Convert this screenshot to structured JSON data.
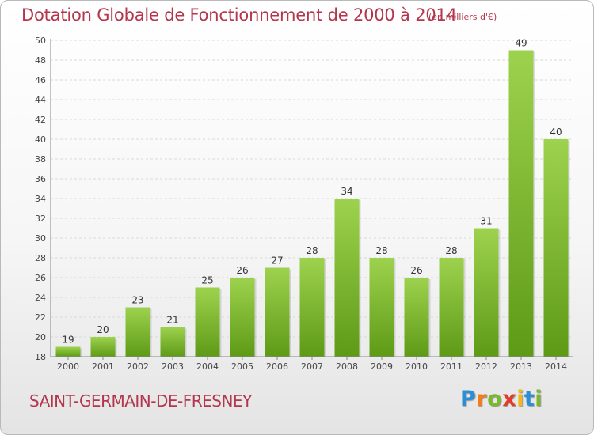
{
  "header": {
    "title": "Dotation Globale de Fonctionnement de 2000 à 2014",
    "unit": "(en milliers d'€)"
  },
  "footer": {
    "commune": "SAINT-GERMAIN-DE-FRESNEY",
    "logo_letters": [
      "P",
      "r",
      "o",
      "x",
      "i",
      "t",
      "i"
    ],
    "logo_colors": [
      "#2a8fd6",
      "#f07f1a",
      "#7ab82e",
      "#e33d2a",
      "#f0b81a",
      "#2a8fd6",
      "#7ab82e"
    ]
  },
  "colors": {
    "bar_top": "#9dd24e",
    "bar_bottom": "#5e9a16",
    "grid": "#d9d9d9",
    "axis": "#888888",
    "text_accent": "#b3364c"
  },
  "chart_data": {
    "type": "bar",
    "title": "Dotation Globale de Fonctionnement de 2000 à 2014",
    "categories": [
      "2000",
      "2001",
      "2002",
      "2003",
      "2004",
      "2005",
      "2006",
      "2007",
      "2008",
      "2009",
      "2010",
      "2011",
      "2012",
      "2013",
      "2014"
    ],
    "values": [
      19,
      20,
      23,
      21,
      25,
      26,
      27,
      28,
      34,
      28,
      26,
      28,
      31,
      49,
      40
    ],
    "ylim": [
      18,
      50
    ],
    "yticks": [
      18,
      20,
      22,
      24,
      26,
      28,
      30,
      32,
      34,
      36,
      38,
      40,
      42,
      44,
      46,
      48,
      50
    ],
    "xlabel": "",
    "ylabel": "",
    "grid": true
  }
}
